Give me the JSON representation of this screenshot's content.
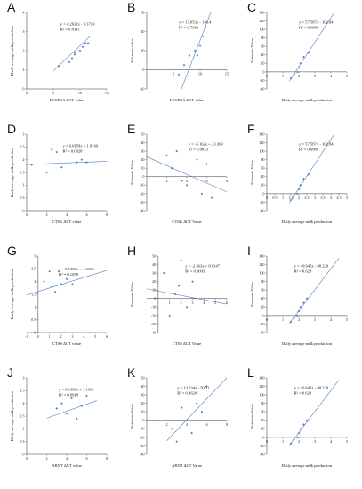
{
  "colors": {
    "points": "#4f81bd",
    "trend": "#4f81bd",
    "axis": "#333333"
  },
  "chart_data": [
    {
      "label": "A",
      "type": "scatter",
      "title": "",
      "xlabel": "FCGR1A ΔCT value",
      "ylabel": "Daily average milk production",
      "xlim": [
        0,
        15
      ],
      "ylim": [
        0,
        4
      ],
      "xticks": [
        0,
        5,
        10,
        15
      ],
      "yticks": [
        0,
        1,
        2,
        3,
        4
      ],
      "equation": "y = 0.2632x - 0.3719",
      "r2": "R² = 0.8341",
      "x": [
        6,
        8,
        8.5,
        9,
        9,
        10,
        10.5,
        11,
        11.5
      ],
      "y": [
        1.2,
        1.4,
        1.6,
        1.8,
        1.9,
        2.0,
        2.2,
        2.4,
        2.4
      ],
      "fit": [
        0.2632,
        -0.3719
      ],
      "fit_range": [
        5,
        12
      ]
    },
    {
      "label": "B",
      "type": "scatter",
      "title": "",
      "xlabel": "FCGR3A ΔCT value",
      "ylabel": "Estimate value",
      "xlim": [
        0,
        15
      ],
      "ylim": [
        -20,
        60
      ],
      "xticks": [
        5,
        10,
        15
      ],
      "yticks": [
        -20,
        0,
        20,
        40,
        60
      ],
      "equation": "y = 17.053x - 140.4",
      "r2": "R² = 0.7382",
      "x": [
        6,
        7,
        8,
        9,
        9.5,
        10,
        10.5,
        11
      ],
      "y": [
        -5,
        5,
        15,
        20,
        15,
        25,
        35,
        45
      ],
      "fit": [
        17.053,
        -140.4
      ],
      "fit_range": [
        6.5,
        12
      ]
    },
    {
      "label": "C",
      "type": "scatter",
      "title": "",
      "xlabel": "Daily average milk production",
      "ylabel": "Estimate Value",
      "xlim": [
        0,
        5
      ],
      "ylim": [
        -40,
        140
      ],
      "xticks": [
        0,
        1,
        2,
        3,
        4,
        5
      ],
      "yticks": [
        -40,
        -20,
        0,
        20,
        40,
        60,
        80,
        100,
        120,
        140
      ],
      "equation": "y = 57.587x - 102.84",
      "r2": "R² = 0.6988",
      "x": [
        1.5,
        1.7,
        1.9,
        2.0,
        2.1,
        2.3,
        2.6
      ],
      "y": [
        -15,
        -5,
        0,
        10,
        20,
        35,
        45
      ],
      "fit": [
        57.587,
        -102.84
      ],
      "fit_range": [
        1.4,
        4.2
      ]
    },
    {
      "label": "D",
      "type": "scatter",
      "title": "",
      "xlabel": "CTSK ΔCT value",
      "ylabel": "Daily average milk production",
      "xlim": [
        0,
        8
      ],
      "ylim": [
        0,
        3
      ],
      "xticks": [
        0,
        2,
        4,
        6,
        8
      ],
      "yticks": [
        0,
        0.5,
        1,
        1.5,
        2,
        2.5,
        3
      ],
      "equation": "y = 0.0159x + 1.8109",
      "r2": "R² = 0.0028",
      "x": [
        0.5,
        2,
        2.5,
        3,
        3.5,
        5,
        5.5,
        6
      ],
      "y": [
        1.8,
        1.5,
        2.4,
        2.3,
        1.7,
        1.9,
        2.0,
        1.9
      ],
      "fit": [
        0.0159,
        1.8109
      ],
      "fit_range": [
        0,
        8
      ]
    },
    {
      "label": "E",
      "type": "scatter",
      "title": "",
      "xlabel": "CTSK ΔCT Value",
      "ylabel": "Estimate Value",
      "xlim": [
        0,
        8
      ],
      "ylim": [
        -40,
        50
      ],
      "xticks": [
        2,
        4,
        6,
        8
      ],
      "yticks": [
        -40,
        -30,
        -20,
        -10,
        0,
        10,
        20,
        30,
        40,
        50
      ],
      "equation": "y = -5.162x + 23.369",
      "r2": "R² = 0.0833",
      "x": [
        2,
        2.5,
        3,
        3.5,
        4,
        5,
        5.5,
        6,
        6.5
      ],
      "y": [
        25,
        10,
        30,
        -5,
        -10,
        20,
        -20,
        15,
        -25
      ],
      "fit": [
        -5.162,
        23.369
      ],
      "fit_range": [
        0,
        8
      ]
    },
    {
      "label": "F",
      "type": "scatter",
      "title": "",
      "xlabel": "Daily average milk production",
      "ylabel": "Estimate Value",
      "xlim": [
        0,
        5
      ],
      "ylim": [
        -40,
        140
      ],
      "xticks": [
        0,
        0.5,
        1,
        1.5,
        2,
        2.5,
        3,
        3.5,
        4,
        4.5,
        5
      ],
      "yticks": [
        -40,
        -20,
        0,
        20,
        40,
        60,
        80,
        100,
        120,
        140
      ],
      "equation": "y = 57.587x - 102.84",
      "r2": "R² = 0.6988",
      "x": [
        1.5,
        1.7,
        1.9,
        2.0,
        2.1,
        2.3,
        2.6
      ],
      "y": [
        -15,
        -5,
        0,
        10,
        20,
        35,
        45
      ],
      "fit": [
        57.587,
        -102.84
      ],
      "fit_range": [
        1.4,
        4.2
      ]
    },
    {
      "label": "G",
      "type": "scatter",
      "title": "",
      "xlabel": "CTSS ΔCT value",
      "ylabel": "Daily average milk production",
      "xlim": [
        -1,
        6
      ],
      "ylim": [
        0,
        3
      ],
      "xticks": [
        -1,
        0,
        1,
        2,
        3,
        4,
        5,
        6
      ],
      "yticks": [
        0,
        0.5,
        1,
        1.5,
        2,
        2.5,
        3
      ],
      "equation": "y = 0.1381x + 1.6103",
      "r2": "R² = 0.1058",
      "x": [
        0.5,
        1,
        1.2,
        1.5,
        1.8,
        2,
        2.5,
        3
      ],
      "y": [
        2.0,
        2.4,
        1.8,
        1.6,
        2.4,
        1.9,
        2.1,
        1.9
      ],
      "fit": [
        0.1381,
        1.6103
      ],
      "fit_range": [
        -1,
        6
      ]
    },
    {
      "label": "H",
      "type": "scatter",
      "title": "",
      "xlabel": "CTSS ΔCT Value",
      "ylabel": "Estimate Value",
      "xlim": [
        -1,
        6
      ],
      "ylim": [
        -40,
        50
      ],
      "xticks": [
        1,
        2,
        3,
        4,
        5,
        6
      ],
      "yticks": [
        -40,
        -30,
        -20,
        -10,
        0,
        10,
        20,
        30,
        40,
        50
      ],
      "equation": "y = -2.563x + 8.8347",
      "r2": "R² = 0.0093",
      "x": [
        0.5,
        1,
        1.5,
        1.8,
        2,
        2.5,
        3
      ],
      "y": [
        30,
        -20,
        5,
        15,
        45,
        -10,
        20
      ],
      "fit": [
        -2.563,
        8.8347
      ],
      "fit_range": [
        -1,
        6
      ]
    },
    {
      "label": "I",
      "type": "scatter",
      "title": "",
      "xlabel": "Daily average milk production",
      "ylabel": "Estimate Value",
      "xlim": [
        0,
        5
      ],
      "ylim": [
        -40,
        140
      ],
      "xticks": [
        0,
        1,
        2,
        3,
        4,
        5
      ],
      "yticks": [
        -40,
        -20,
        0,
        20,
        40,
        60,
        80,
        100,
        120,
        140
      ],
      "equation": "y = 49.645x - 88.229",
      "r2": "R² = 0.628",
      "x": [
        1.5,
        1.7,
        1.9,
        2.0,
        2.1,
        2.3,
        2.5
      ],
      "y": [
        -15,
        -5,
        0,
        10,
        20,
        30,
        40
      ],
      "fit": [
        49.645,
        -88.229
      ],
      "fit_range": [
        1.4,
        4.5
      ]
    },
    {
      "label": "J",
      "type": "scatter",
      "title": "",
      "xlabel": "ARNT ΔCT value",
      "ylabel": "Daily average milk production",
      "xlim": [
        0,
        8
      ],
      "ylim": [
        0,
        3
      ],
      "xticks": [
        0,
        2,
        4,
        6,
        8
      ],
      "yticks": [
        0,
        0.5,
        1,
        1.5,
        2,
        2.5,
        3
      ],
      "equation": "y = 0.1386x + 1.1392",
      "r2": "R² = 0.0918",
      "x": [
        3,
        3.5,
        4,
        4.5,
        5,
        5.5,
        6
      ],
      "y": [
        1.8,
        2.0,
        1.6,
        2.2,
        1.4,
        1.9,
        2.3
      ],
      "fit": [
        0.1386,
        1.1392
      ],
      "fit_range": [
        2,
        7
      ]
    },
    {
      "label": "K",
      "type": "scatter",
      "title": "",
      "xlabel": "ARNT ΔCT Value",
      "ylabel": "Estimate Value",
      "xlim": [
        0,
        8
      ],
      "ylim": [
        -40,
        50
      ],
      "xticks": [
        2,
        4,
        6,
        8
      ],
      "yticks": [
        -40,
        -30,
        -20,
        -10,
        0,
        10,
        20,
        30,
        40,
        50
      ],
      "equation": "y = 13.234x - 50.51",
      "r2": "R² = 0.1629",
      "x": [
        2.5,
        3,
        3.5,
        4,
        4.5,
        5,
        5.5,
        6
      ],
      "y": [
        -10,
        -25,
        15,
        0,
        -15,
        20,
        10,
        40
      ],
      "fit": [
        13.234,
        -50.51
      ],
      "fit_range": [
        2,
        8
      ]
    },
    {
      "label": "L",
      "type": "scatter",
      "title": "",
      "xlabel": "Daily average milk production",
      "ylabel": "Estimate Value",
      "xlim": [
        0,
        5
      ],
      "ylim": [
        -40,
        140
      ],
      "xticks": [
        0,
        1,
        2,
        3,
        4,
        5
      ],
      "yticks": [
        -40,
        -20,
        0,
        20,
        40,
        60,
        80,
        100,
        120,
        140
      ],
      "equation": "y = 49.645x - 88.229",
      "r2": "R² = 0.628",
      "x": [
        1.5,
        1.7,
        1.9,
        2.0,
        2.1,
        2.3,
        2.5
      ],
      "y": [
        -15,
        -5,
        0,
        10,
        20,
        30,
        40
      ],
      "fit": [
        49.645,
        -88.229
      ],
      "fit_range": [
        1.4,
        4.5
      ]
    }
  ]
}
